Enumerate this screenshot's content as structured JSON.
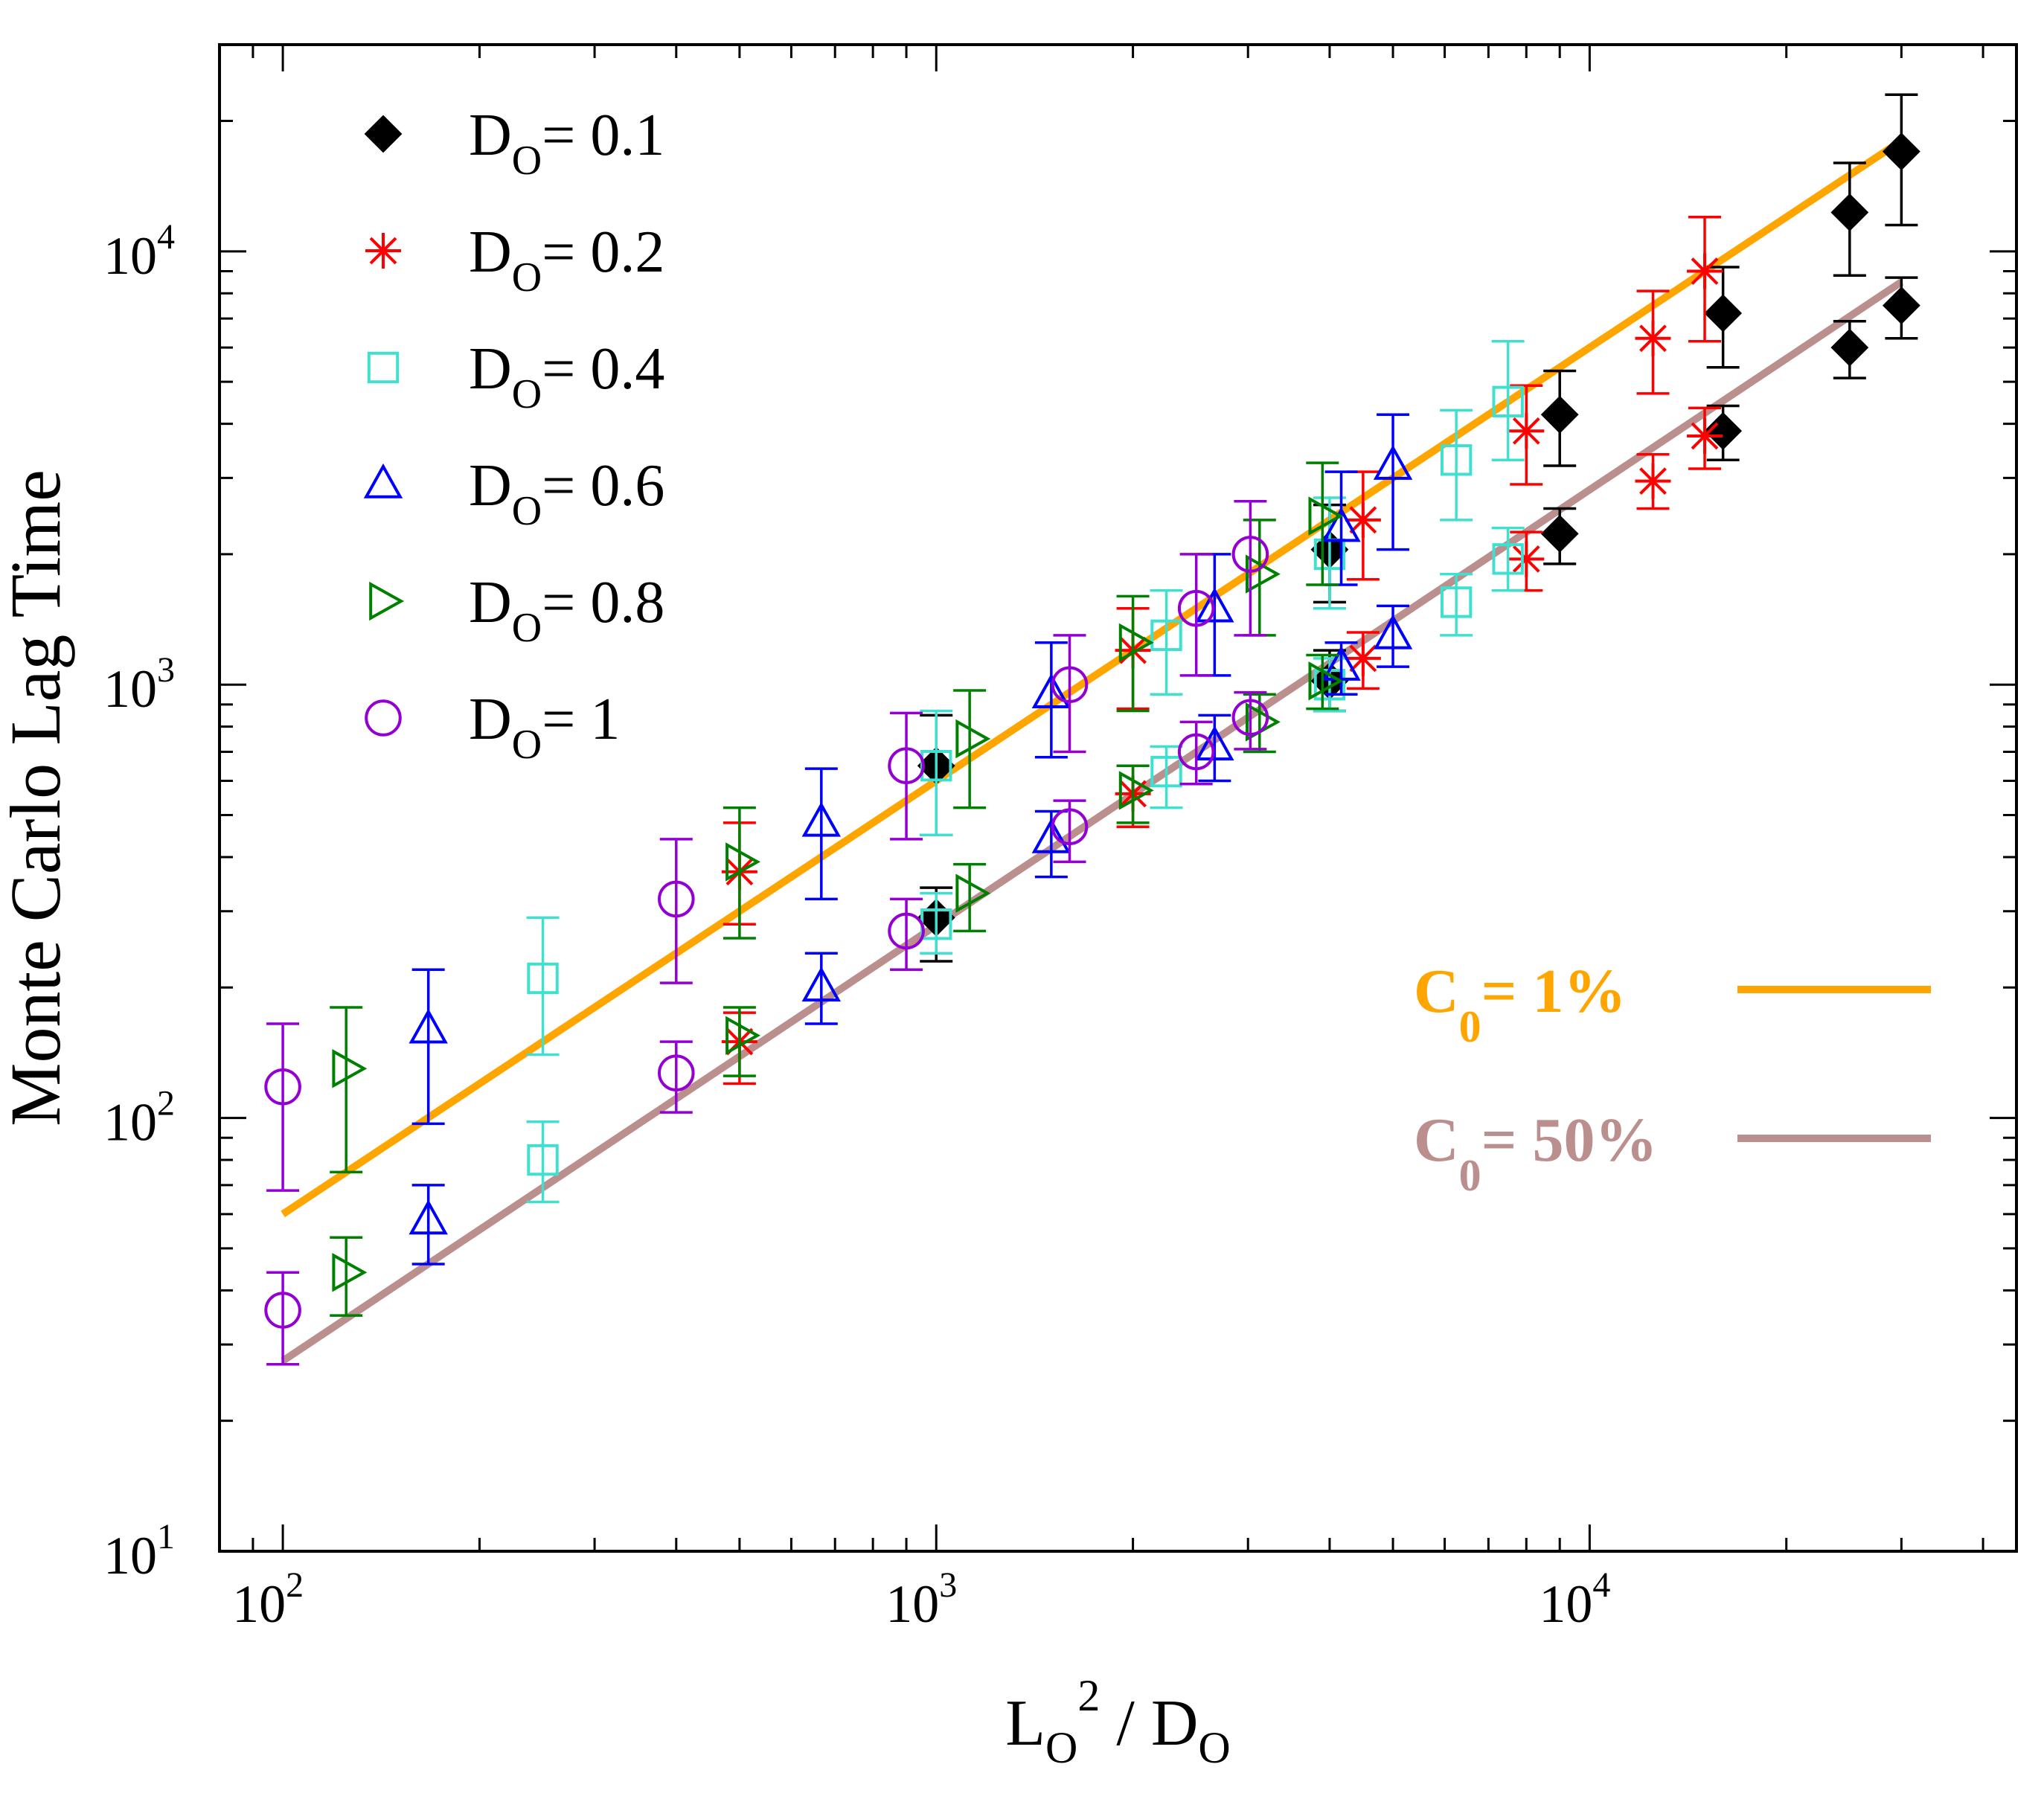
{
  "chart_data": {
    "type": "scatter",
    "title": "",
    "xlabel": {
      "main": "L",
      "sub": "O",
      "sup": "2",
      "rest": " / D",
      "sub2": "O"
    },
    "ylabel": "Monte  Carlo  Lag  Time",
    "xscale": "log",
    "yscale": "log",
    "xlim": [
      80,
      45000
    ],
    "ylim": [
      10,
      30000
    ],
    "x_ticks": [
      {
        "value": 100,
        "base": "10",
        "exp": "2"
      },
      {
        "value": 1000,
        "base": "10",
        "exp": "3"
      },
      {
        "value": 10000,
        "base": "10",
        "exp": "4"
      }
    ],
    "y_ticks": [
      {
        "value": 10,
        "base": "10",
        "exp": "1"
      },
      {
        "value": 100,
        "base": "10",
        "exp": "2"
      },
      {
        "value": 1000,
        "base": "10",
        "exp": "3"
      },
      {
        "value": 10000,
        "base": "10",
        "exp": "4"
      }
    ],
    "series": [
      {
        "name": "D_O = 0.1",
        "legend": {
          "main": "D",
          "sub": "O",
          "rest": "= 0.1"
        },
        "color": "#000000",
        "marker": "diamond",
        "filled": true,
        "points": [
          {
            "x": 1000,
            "y": 650,
            "lo": 450,
            "hi": 850
          },
          {
            "x": 1000,
            "y": 290,
            "lo": 230,
            "hi": 340
          },
          {
            "x": 4000,
            "y": 2050,
            "lo": 1550,
            "hi": 2600
          },
          {
            "x": 4000,
            "y": 1020,
            "lo": 870,
            "hi": 1200
          },
          {
            "x": 9000,
            "y": 4200,
            "lo": 3200,
            "hi": 5300
          },
          {
            "x": 9000,
            "y": 2230,
            "lo": 1900,
            "hi": 2550
          },
          {
            "x": 16000,
            "y": 7200,
            "lo": 5400,
            "hi": 9200
          },
          {
            "x": 16000,
            "y": 3850,
            "lo": 3300,
            "hi": 4400
          },
          {
            "x": 25000,
            "y": 12300,
            "lo": 8800,
            "hi": 16000
          },
          {
            "x": 25000,
            "y": 6000,
            "lo": 5100,
            "hi": 6900
          },
          {
            "x": 30000,
            "y": 17000,
            "lo": 11500,
            "hi": 23000
          },
          {
            "x": 30000,
            "y": 7500,
            "lo": 6300,
            "hi": 8700
          }
        ]
      },
      {
        "name": "D_O = 0.2",
        "legend": {
          "main": "D",
          "sub": "O",
          "rest": "= 0.2"
        },
        "color": "#ff0000",
        "marker": "star",
        "filled": false,
        "points": [
          {
            "x": 500,
            "y": 370,
            "lo": 280,
            "hi": 480
          },
          {
            "x": 500,
            "y": 150,
            "lo": 120,
            "hi": 175
          },
          {
            "x": 2000,
            "y": 1200,
            "lo": 880,
            "hi": 1500
          },
          {
            "x": 2000,
            "y": 560,
            "lo": 470,
            "hi": 650
          },
          {
            "x": 4500,
            "y": 2400,
            "lo": 1750,
            "hi": 3100
          },
          {
            "x": 4500,
            "y": 1150,
            "lo": 980,
            "hi": 1320
          },
          {
            "x": 8000,
            "y": 3850,
            "lo": 2900,
            "hi": 4900
          },
          {
            "x": 8000,
            "y": 1950,
            "lo": 1650,
            "hi": 2250
          },
          {
            "x": 12500,
            "y": 6300,
            "lo": 4700,
            "hi": 8100
          },
          {
            "x": 12500,
            "y": 2950,
            "lo": 2550,
            "hi": 3400
          },
          {
            "x": 15000,
            "y": 9000,
            "lo": 6200,
            "hi": 12000
          },
          {
            "x": 15000,
            "y": 3750,
            "lo": 3150,
            "hi": 4350
          }
        ]
      },
      {
        "name": "D_O = 0.4",
        "legend": {
          "main": "D",
          "sub": "O",
          "rest": "= 0.4"
        },
        "color": "#40e0d0",
        "marker": "square",
        "filled": false,
        "points": [
          {
            "x": 250,
            "y": 210,
            "lo": 140,
            "hi": 290
          },
          {
            "x": 250,
            "y": 80,
            "lo": 64,
            "hi": 98
          },
          {
            "x": 1000,
            "y": 650,
            "lo": 450,
            "hi": 870
          },
          {
            "x": 1000,
            "y": 280,
            "lo": 240,
            "hi": 330
          },
          {
            "x": 2250,
            "y": 1300,
            "lo": 950,
            "hi": 1650
          },
          {
            "x": 2250,
            "y": 630,
            "lo": 520,
            "hi": 720
          },
          {
            "x": 4000,
            "y": 2000,
            "lo": 1500,
            "hi": 2700
          },
          {
            "x": 4000,
            "y": 1000,
            "lo": 870,
            "hi": 1150
          },
          {
            "x": 6250,
            "y": 3300,
            "lo": 2400,
            "hi": 4300
          },
          {
            "x": 6250,
            "y": 1550,
            "lo": 1300,
            "hi": 1800
          },
          {
            "x": 7500,
            "y": 4500,
            "lo": 3300,
            "hi": 6200
          },
          {
            "x": 7500,
            "y": 1950,
            "lo": 1650,
            "hi": 2300
          }
        ]
      },
      {
        "name": "D_O = 0.6",
        "legend": {
          "main": "D",
          "sub": "O",
          "rest": "= 0.6"
        },
        "color": "#0000ff",
        "marker": "triangle-up",
        "filled": false,
        "points": [
          {
            "x": 167,
            "y": 160,
            "lo": 97,
            "hi": 220
          },
          {
            "x": 167,
            "y": 58,
            "lo": 46,
            "hi": 70
          },
          {
            "x": 667,
            "y": 480,
            "lo": 320,
            "hi": 640
          },
          {
            "x": 667,
            "y": 200,
            "lo": 165,
            "hi": 240
          },
          {
            "x": 1500,
            "y": 950,
            "lo": 680,
            "hi": 1250
          },
          {
            "x": 1500,
            "y": 440,
            "lo": 360,
            "hi": 510
          },
          {
            "x": 2667,
            "y": 1500,
            "lo": 1050,
            "hi": 2000
          },
          {
            "x": 2667,
            "y": 720,
            "lo": 600,
            "hi": 850
          },
          {
            "x": 4167,
            "y": 2300,
            "lo": 1700,
            "hi": 3100
          },
          {
            "x": 4167,
            "y": 1100,
            "lo": 950,
            "hi": 1250
          },
          {
            "x": 5000,
            "y": 3200,
            "lo": 2050,
            "hi": 4200
          },
          {
            "x": 5000,
            "y": 1300,
            "lo": 1100,
            "hi": 1520
          }
        ]
      },
      {
        "name": "D_O = 0.8",
        "legend": {
          "main": "D",
          "sub": "O",
          "rest": "= 0.8"
        },
        "color": "#008000",
        "marker": "triangle-right",
        "filled": false,
        "points": [
          {
            "x": 125,
            "y": 130,
            "lo": 75,
            "hi": 180
          },
          {
            "x": 125,
            "y": 44,
            "lo": 35,
            "hi": 53
          },
          {
            "x": 500,
            "y": 390,
            "lo": 260,
            "hi": 520
          },
          {
            "x": 500,
            "y": 155,
            "lo": 125,
            "hi": 180
          },
          {
            "x": 1125,
            "y": 750,
            "lo": 520,
            "hi": 970
          },
          {
            "x": 1125,
            "y": 330,
            "lo": 270,
            "hi": 385
          },
          {
            "x": 2000,
            "y": 1250,
            "lo": 870,
            "hi": 1600
          },
          {
            "x": 2000,
            "y": 570,
            "lo": 480,
            "hi": 650
          },
          {
            "x": 3125,
            "y": 1800,
            "lo": 1300,
            "hi": 2400
          },
          {
            "x": 3125,
            "y": 820,
            "lo": 700,
            "hi": 950
          },
          {
            "x": 3900,
            "y": 2450,
            "lo": 1700,
            "hi": 3250
          },
          {
            "x": 3900,
            "y": 1020,
            "lo": 880,
            "hi": 1170
          }
        ]
      },
      {
        "name": "D_O = 1",
        "legend": {
          "main": "D",
          "sub": "O",
          "rest": "= 1"
        },
        "color": "#9400d3",
        "marker": "circle",
        "filled": false,
        "points": [
          {
            "x": 100,
            "y": 118,
            "lo": 68,
            "hi": 165
          },
          {
            "x": 100,
            "y": 36,
            "lo": 27,
            "hi": 44
          },
          {
            "x": 400,
            "y": 320,
            "lo": 205,
            "hi": 440
          },
          {
            "x": 400,
            "y": 127,
            "lo": 103,
            "hi": 150
          },
          {
            "x": 900,
            "y": 650,
            "lo": 440,
            "hi": 860
          },
          {
            "x": 900,
            "y": 270,
            "lo": 220,
            "hi": 320
          },
          {
            "x": 1600,
            "y": 1000,
            "lo": 700,
            "hi": 1300
          },
          {
            "x": 1600,
            "y": 470,
            "lo": 390,
            "hi": 540
          },
          {
            "x": 2500,
            "y": 1500,
            "lo": 1050,
            "hi": 2000
          },
          {
            "x": 2500,
            "y": 700,
            "lo": 590,
            "hi": 820
          },
          {
            "x": 3025,
            "y": 2000,
            "lo": 1300,
            "hi": 2650
          },
          {
            "x": 3025,
            "y": 840,
            "lo": 710,
            "hi": 960
          }
        ]
      }
    ],
    "fit_lines": [
      {
        "name": "C0 = 1%",
        "label": {
          "main": "C",
          "sub": "0",
          "rest": "= 1%"
        },
        "color": "#ffa500",
        "x": [
          100,
          30000
        ],
        "y": [
          60,
          18000
        ]
      },
      {
        "name": "C0 = 50%",
        "label": {
          "main": "C",
          "sub": "0",
          "rest": "= 50%"
        },
        "color": "#bc8f8f",
        "x": [
          100,
          30000
        ],
        "y": [
          27.5,
          8500
        ]
      }
    ],
    "legend_position": "top-left",
    "fit_legend_position": "right-middle",
    "grid": false
  }
}
